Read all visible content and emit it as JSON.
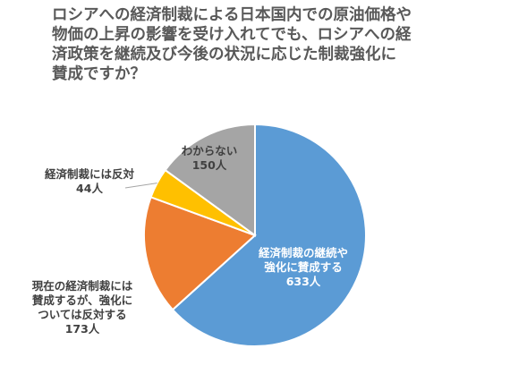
{
  "chart_data": {
    "type": "pie",
    "title_lines": [
      "ロシアへの経済制裁による日本国内での原油価格や",
      "物価の上昇の影響を受け入れてでも、ロシアへの経",
      "済政策を継続及び今後の状況に応じた制裁強化に",
      "賛成ですか？"
    ],
    "slices": [
      {
        "label_lines": [
          "経済制裁の継続や",
          "強化に賛成する"
        ],
        "value": 633,
        "value_label": "633人",
        "color": "#5b9bd5"
      },
      {
        "label_lines": [
          "現在の経済制裁には",
          "賛成するが、強化に",
          "ついては反対する"
        ],
        "value": 173,
        "value_label": "173人",
        "color": "#ed7d31"
      },
      {
        "label_lines": [
          "経済制裁には反対"
        ],
        "value": 44,
        "value_label": "44人",
        "color": "#ffc000"
      },
      {
        "label_lines": [
          "わからない"
        ],
        "value": 150,
        "value_label": "150人",
        "color": "#a5a5a5"
      }
    ],
    "legend": "none"
  }
}
